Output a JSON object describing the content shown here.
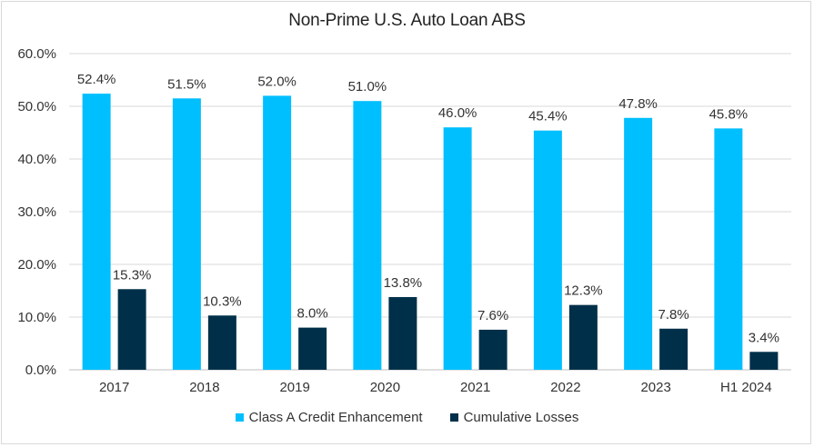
{
  "chart_data": {
    "type": "bar",
    "title": "Non-Prime U.S. Auto Loan ABS",
    "categories": [
      "2017",
      "2018",
      "2019",
      "2020",
      "2021",
      "2022",
      "2023",
      "H1 2024"
    ],
    "series": [
      {
        "name": "Class A Credit Enhancement",
        "color": "#00bfff",
        "values": [
          52.4,
          51.5,
          52.0,
          51.0,
          46.0,
          45.4,
          47.8,
          45.8
        ],
        "labels": [
          "52.4%",
          "51.5%",
          "52.0%",
          "51.0%",
          "46.0%",
          "45.4%",
          "47.8%",
          "45.8%"
        ]
      },
      {
        "name": "Cumulative Losses",
        "color": "#003049",
        "values": [
          15.3,
          10.3,
          8.0,
          13.8,
          7.6,
          12.3,
          7.8,
          3.4
        ],
        "labels": [
          "15.3%",
          "10.3%",
          "8.0%",
          "13.8%",
          "7.6%",
          "12.3%",
          "7.8%",
          "3.4%"
        ]
      }
    ],
    "ylim": [
      0,
      60
    ],
    "yticks": [
      "0.0%",
      "10.0%",
      "20.0%",
      "30.0%",
      "40.0%",
      "50.0%",
      "60.0%"
    ],
    "ytick_values": [
      0,
      10,
      20,
      30,
      40,
      50,
      60
    ],
    "grid": true,
    "legend": "bottom-center"
  }
}
